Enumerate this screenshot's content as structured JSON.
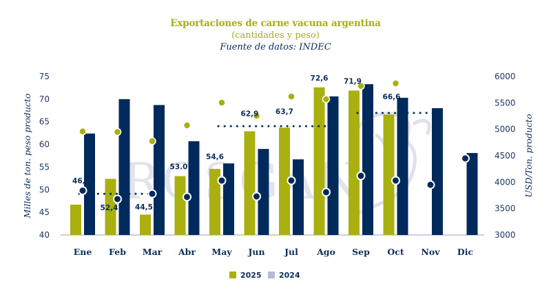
{
  "colors": {
    "series_2025": "#a9b00f",
    "series_2024": "#002a5c",
    "legend_2024": "#b4bad4",
    "axis_line": "#b9bfd8",
    "watermark": "#c9cde0"
  },
  "watermark_text": "ROSGAN",
  "chart_data": {
    "type": "bar",
    "title": "Exportaciones de carne vacuna argentina",
    "subtitle": "(cantidades y peso)",
    "source": "Fuente de datos: INDEC",
    "categories": [
      "Ene",
      "Feb",
      "Mar",
      "Abr",
      "May",
      "Jun",
      "Jul",
      "Ago",
      "Sep",
      "Oct",
      "Nov",
      "Dic"
    ],
    "ylabel_left": "Milles de ton. peso producto",
    "ylabel_right": "USD/Ton. producto",
    "ylim_left": [
      40,
      75
    ],
    "yticks_left": [
      "40",
      "45",
      "50",
      "55",
      "60",
      "65",
      "70",
      "75"
    ],
    "ylim_right": [
      3000,
      6000
    ],
    "yticks_right": [
      "3000",
      "3500",
      "4000",
      "4500",
      "5000",
      "5500",
      "6000"
    ],
    "series": [
      {
        "name": "2025",
        "kind": "bar",
        "axis": "left",
        "values": [
          46.7,
          52.4,
          44.5,
          53.0,
          54.6,
          62.9,
          63.7,
          72.6,
          71.9,
          66.6,
          null,
          null
        ],
        "labels": [
          "46,7",
          "52,4",
          "44,5",
          "53.0",
          "54,6",
          "62,9",
          "63,7",
          "72,6",
          "71,9",
          "66,6",
          "",
          ""
        ]
      },
      {
        "name": "2024",
        "kind": "bar",
        "axis": "left",
        "values": [
          62.4,
          70.0,
          68.7,
          60.7,
          55.8,
          59.0,
          56.7,
          70.6,
          73.3,
          70.3,
          68.0,
          58.1
        ]
      },
      {
        "name": "Precio 2025",
        "kind": "dot",
        "axis": "right",
        "values": [
          4960,
          4950,
          4775,
          5075,
          5505,
          5255,
          5620,
          5570,
          5820,
          5870,
          null,
          null
        ]
      },
      {
        "name": "Precio 2024",
        "kind": "dot",
        "axis": "right",
        "values": [
          3840,
          3680,
          3780,
          3720,
          4030,
          3730,
          4030,
          3810,
          4120,
          4030,
          3950,
          4450
        ]
      }
    ],
    "averages": [
      {
        "name": "Promedio Ene-Mar",
        "axis": "right",
        "value": 3780,
        "from": "Ene",
        "to": "Mar"
      },
      {
        "name": "Promedio May-Ago",
        "axis": "right",
        "value": 5060,
        "from": "May",
        "to": "Ago"
      },
      {
        "name": "Promedio Sep-Nov",
        "axis": "right",
        "value": 5310,
        "from": "Sep",
        "to": "Nov"
      }
    ],
    "legend": {
      "position": "bottom-center",
      "entries": [
        "2025",
        "2024"
      ]
    },
    "grid": false
  }
}
